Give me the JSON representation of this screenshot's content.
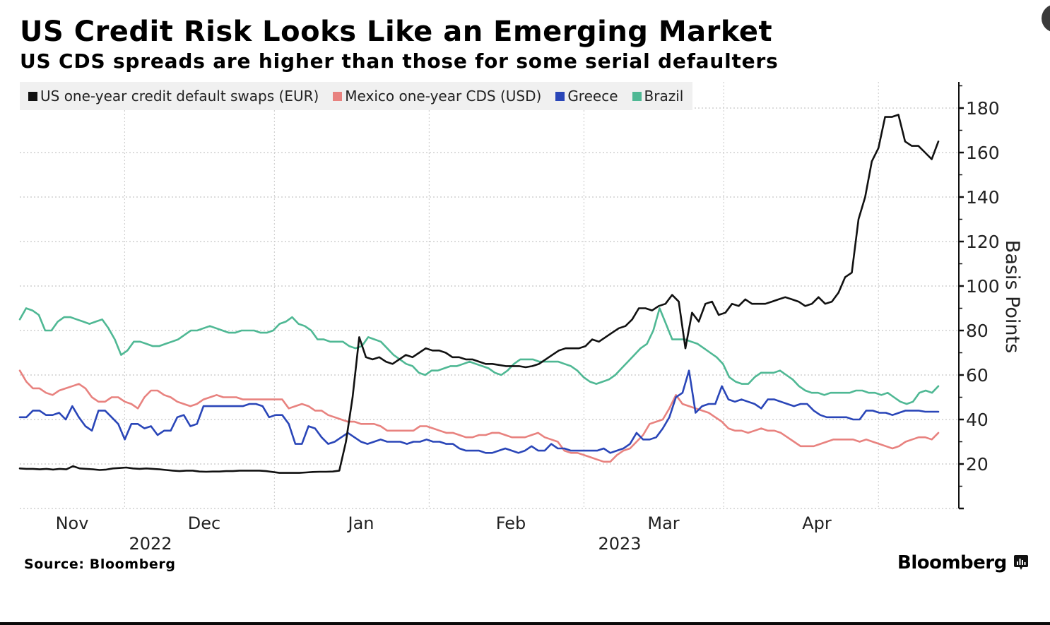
{
  "header": {
    "title": "US Credit Risk Looks Like an Emerging Market",
    "subtitle": "US CDS spreads are higher than those for some serial defaulters"
  },
  "footer": {
    "source": "Source: Bloomberg",
    "brand": "Bloomberg",
    "brand_icon": "bloomberg-chart-icon"
  },
  "colors": {
    "us": "#111111",
    "mexico": "#e8827f",
    "greece": "#2a46b8",
    "brazil": "#4fb894",
    "grid": "#c8c8c8",
    "legend_bg": "#f0f0f0"
  },
  "chart_data": {
    "type": "line",
    "title": "US Credit Risk Looks Like an Emerging Market",
    "subtitle": "US CDS spreads are higher than those for some serial defaulters",
    "xlabel": "",
    "ylabel": "Basis Points",
    "ylim": [
      0,
      190
    ],
    "yticks": [
      20,
      40,
      60,
      80,
      100,
      120,
      140,
      160,
      180
    ],
    "y_axis_side": "right",
    "grid": true,
    "legend_placement": "top-left",
    "x_range": [
      "2022-10-25",
      "2023-04-27"
    ],
    "x_month_labels": [
      {
        "label": "Nov",
        "date": "2022-11-01"
      },
      {
        "label": "Dec",
        "date": "2022-12-01"
      },
      {
        "label": "Jan",
        "date": "2023-01-01"
      },
      {
        "label": "Feb",
        "date": "2023-02-01"
      },
      {
        "label": "Mar",
        "date": "2023-03-01"
      },
      {
        "label": "Apr",
        "date": "2023-04-01"
      }
    ],
    "x_year_labels": [
      {
        "label": "2022",
        "date": "2022-11-15"
      },
      {
        "label": "2023",
        "date": "2023-03-01"
      }
    ],
    "x_gridlines": [
      "2022-11-15",
      "2022-12-15",
      "2023-01-15",
      "2023-02-15",
      "2023-03-15",
      "2023-04-15"
    ],
    "x_step_days": 1.4,
    "series": [
      {
        "name": "US one-year credit default swaps (EUR)",
        "color": "#111111",
        "values": [
          18,
          17.8,
          17.8,
          17.6,
          17.8,
          17.5,
          17.8,
          17.6,
          19,
          18,
          17.8,
          17.6,
          17.3,
          17.5,
          18,
          18.2,
          18.4,
          18,
          17.8,
          18,
          17.8,
          17.6,
          17.3,
          17,
          16.8,
          17,
          17,
          16.6,
          16.5,
          16.6,
          16.6,
          16.8,
          16.8,
          17,
          17,
          17,
          17,
          16.8,
          16.4,
          16,
          16,
          16,
          16,
          16.2,
          16.4,
          16.5,
          16.5,
          16.6,
          17,
          30,
          50,
          77,
          68,
          67,
          68,
          66,
          65,
          67,
          69,
          68,
          70,
          72,
          71,
          71,
          70,
          68,
          68,
          67,
          67,
          66,
          65,
          65,
          64.5,
          64,
          64,
          64,
          63.5,
          64,
          65,
          67,
          69,
          71,
          72,
          72,
          72,
          73,
          76,
          75,
          77,
          79,
          81,
          82,
          85,
          90,
          90,
          89,
          91,
          92,
          96,
          93,
          72,
          88,
          84,
          92,
          93,
          87,
          88,
          92,
          91,
          94,
          92,
          92,
          92,
          93,
          94,
          95,
          94,
          93,
          91,
          92,
          95,
          92,
          93,
          97,
          104,
          106,
          130,
          140,
          156,
          162,
          176,
          176,
          177,
          165,
          163,
          163,
          160,
          157,
          165
        ]
      },
      {
        "name": "Mexico one-year CDS (USD)",
        "color": "#e8827f",
        "values": [
          62,
          57,
          54,
          54,
          52,
          51,
          53,
          54,
          55,
          56,
          54,
          50,
          48,
          48,
          50,
          50,
          48,
          47,
          45,
          50,
          53,
          53,
          51,
          50,
          48,
          47,
          46,
          47,
          49,
          50,
          51,
          50,
          50,
          50,
          49,
          49,
          49,
          49,
          49,
          49,
          49,
          45,
          46,
          47,
          46,
          44,
          44,
          42,
          41,
          40,
          39,
          39,
          38,
          38,
          38,
          37,
          35,
          35,
          35,
          35,
          35,
          37,
          37,
          36,
          35,
          34,
          34,
          33,
          32,
          32,
          33,
          33,
          34,
          34,
          33,
          32,
          32,
          32,
          33,
          34,
          32,
          31,
          30,
          26,
          25,
          25,
          24,
          23,
          22,
          21,
          21,
          24,
          26,
          27,
          30,
          33,
          38,
          39,
          40,
          45,
          51,
          47,
          46,
          45,
          44,
          43,
          41,
          39,
          36,
          35,
          35,
          34,
          35,
          36,
          35,
          35,
          34,
          32,
          30,
          28,
          28,
          28,
          29,
          30,
          31,
          31,
          31,
          31,
          30,
          31,
          30,
          29,
          28,
          27,
          28,
          30,
          31,
          32,
          32,
          31,
          34
        ]
      },
      {
        "name": "Greece",
        "color": "#2a46b8",
        "values": [
          41,
          41,
          44,
          44,
          42,
          42,
          43,
          40,
          46,
          41,
          37,
          35,
          44,
          44,
          41,
          38,
          31,
          38,
          38,
          36,
          37,
          33,
          35,
          35,
          41,
          42,
          37,
          38,
          46,
          46,
          46,
          46,
          46,
          46,
          46,
          47,
          47,
          46,
          41,
          42,
          42,
          38,
          29,
          29,
          37,
          36,
          32,
          29,
          30,
          32,
          34,
          32,
          30,
          29,
          30,
          31,
          30,
          30,
          30,
          29,
          30,
          30,
          31,
          30,
          30,
          29,
          29,
          27,
          26,
          26,
          26,
          25,
          25,
          26,
          27,
          26,
          25,
          26,
          28,
          26,
          26,
          29,
          27,
          27,
          26,
          26,
          26,
          26,
          26,
          27,
          25,
          26,
          27,
          29,
          34,
          31,
          31,
          32,
          36,
          41,
          50,
          52,
          62,
          43,
          46,
          47,
          47,
          55,
          49,
          48,
          49,
          48,
          47,
          45,
          49,
          49,
          48,
          47,
          46,
          47,
          47,
          44,
          42,
          41,
          41,
          41,
          41,
          40,
          40,
          44,
          44,
          43,
          43,
          42,
          43,
          44,
          44,
          44,
          43.5,
          43.5,
          43.5
        ]
      },
      {
        "name": "Brazil",
        "color": "#4fb894",
        "values": [
          85,
          90,
          89,
          87,
          80,
          80,
          84,
          86,
          86,
          85,
          84,
          83,
          84,
          85,
          81,
          76,
          69,
          71,
          75,
          75,
          74,
          73,
          73,
          74,
          75,
          76,
          78,
          80,
          80,
          81,
          82,
          81,
          80,
          79,
          79,
          80,
          80,
          80,
          79,
          79,
          80,
          83,
          84,
          86,
          83,
          82,
          80,
          76,
          76,
          75,
          75,
          75,
          73,
          72,
          73,
          77,
          76,
          75,
          72,
          69,
          67,
          65,
          64,
          61,
          60,
          62,
          62,
          63,
          64,
          64,
          65,
          66,
          65,
          64,
          63,
          61,
          60,
          62,
          65,
          67,
          67,
          67,
          66,
          66,
          66,
          66,
          65,
          64,
          62,
          59,
          57,
          56,
          57,
          58,
          60,
          63,
          66,
          69,
          72,
          74,
          80,
          90,
          83,
          76,
          76,
          76,
          75,
          74,
          72,
          70,
          68,
          65,
          59,
          57,
          56,
          56,
          59,
          61,
          61,
          61,
          62,
          60,
          58,
          55,
          53,
          52,
          52,
          51,
          52,
          52,
          52,
          52,
          53,
          53,
          52,
          52,
          51,
          52,
          50,
          48,
          47,
          48,
          52,
          53,
          52,
          55
        ]
      }
    ]
  }
}
